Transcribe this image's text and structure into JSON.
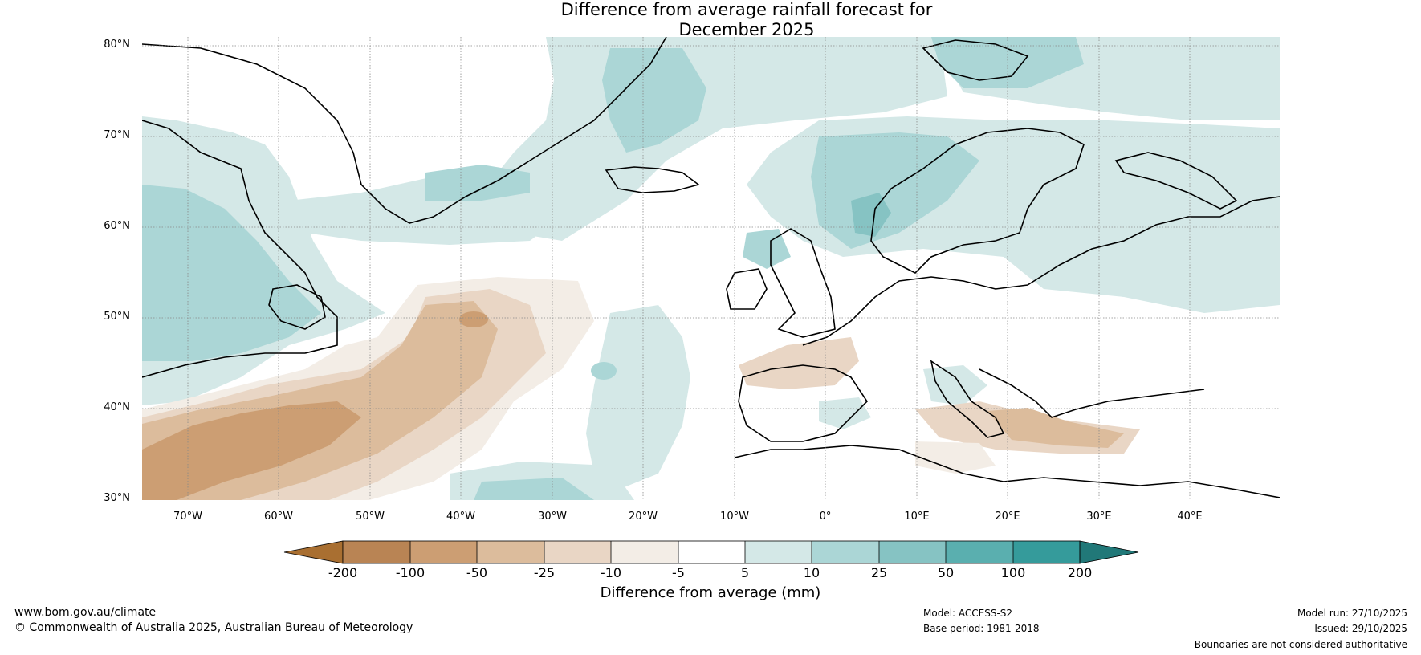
{
  "title": {
    "line1": "Difference from average rainfall forecast for",
    "line2": "December 2025"
  },
  "map": {
    "latitude_labels": [
      "80°N",
      "70°N",
      "60°N",
      "50°N",
      "40°N",
      "30°N"
    ],
    "longitude_labels": [
      "70°W",
      "60°W",
      "50°W",
      "40°W",
      "30°W",
      "20°W",
      "10°W",
      "0°",
      "10°E",
      "20°E",
      "30°E",
      "40°E"
    ]
  },
  "colorbar": {
    "ticks": [
      "-200",
      "-100",
      "-50",
      "-25",
      "-10",
      "-5",
      "5",
      "10",
      "25",
      "50",
      "100",
      "200"
    ],
    "colors": [
      "#a96f31",
      "#b98454",
      "#cc9e73",
      "#dcbc9c",
      "#e9d6c5",
      "#f3ede6",
      "#ffffff",
      "#d4e8e7",
      "#abd6d6",
      "#86c3c3",
      "#5aafaf",
      "#359b9b",
      "#217878"
    ],
    "label": "Difference from average (mm)"
  },
  "footer": {
    "website": "www.bom.gov.au/climate",
    "copyright": "© Commonwealth of Australia 2025, Australian Bureau of Meteorology",
    "model": "Model: ACCESS-S2",
    "base_period": "Base period: 1981-2018",
    "model_run": "Model run: 27/10/2025",
    "issued": "Issued: 29/10/2025",
    "disclaimer": "Boundaries are not considered authoritative"
  }
}
